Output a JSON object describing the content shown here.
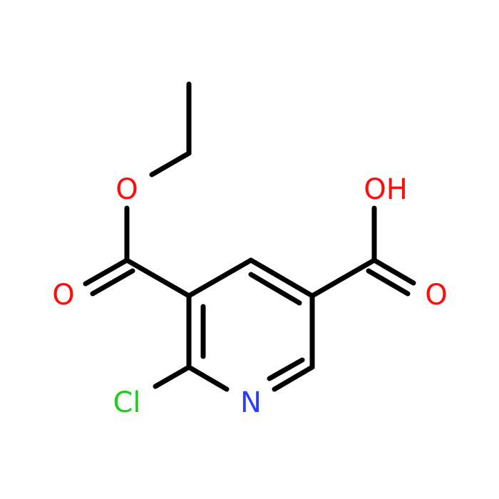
{
  "nodes": [
    {
      "label": "O"
    },
    {
      "label": "O"
    },
    {
      "label": "OH"
    },
    {
      "label": "O"
    },
    {
      "label": "Cl"
    },
    {
      "label": "N"
    }
  ]
}
